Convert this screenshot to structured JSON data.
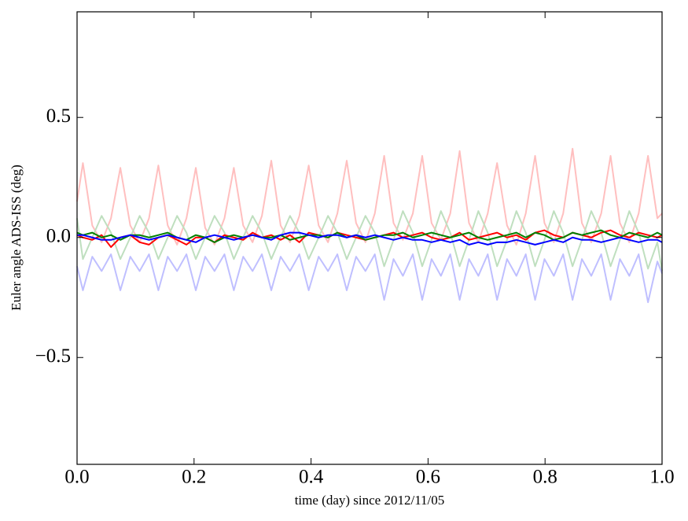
{
  "chart_data": {
    "type": "line",
    "xlabel": "time (day) since 2012/11/05",
    "ylabel": "Euler angle ADS-ISS (deg)",
    "xlim": [
      0,
      1
    ],
    "ylim": [
      -0.945,
      0.94
    ],
    "xticks": [
      {
        "value": 0,
        "label": "0.0"
      },
      0.2,
      0.4,
      0.6,
      0.8,
      {
        "value": 1,
        "label": "1.0"
      }
    ],
    "yticks": [
      {
        "value": -0.5,
        "label": "−0.5"
      },
      {
        "value": 0,
        "label": "0.0"
      },
      0.5
    ],
    "grid": false,
    "x": [
      0,
      0.01,
      0.026,
      0.042,
      0.058,
      0.074,
      0.091,
      0.107,
      0.123,
      0.139,
      0.155,
      0.171,
      0.187,
      0.203,
      0.219,
      0.235,
      0.252,
      0.268,
      0.284,
      0.3,
      0.316,
      0.332,
      0.348,
      0.364,
      0.38,
      0.396,
      0.413,
      0.429,
      0.445,
      0.461,
      0.477,
      0.493,
      0.509,
      0.525,
      0.541,
      0.557,
      0.574,
      0.59,
      0.606,
      0.622,
      0.638,
      0.654,
      0.67,
      0.686,
      0.702,
      0.718,
      0.735,
      0.751,
      0.767,
      0.783,
      0.799,
      0.815,
      0.831,
      0.847,
      0.863,
      0.879,
      0.896,
      0.912,
      0.928,
      0.944,
      0.96,
      0.976,
      0.992,
      1
    ],
    "series": [
      {
        "color": "#ffbfbf",
        "values": [
          0.15,
          0.31,
          0.05,
          -0.02,
          0.08,
          0.29,
          0.05,
          -0.02,
          0.08,
          0.3,
          0.05,
          -0.03,
          0.08,
          0.29,
          0.04,
          -0.03,
          0.08,
          0.29,
          0.05,
          -0.02,
          0.09,
          0.32,
          0.05,
          -0.02,
          0.09,
          0.3,
          0.05,
          -0.02,
          0.1,
          0.32,
          0.06,
          -0.02,
          0.1,
          0.34,
          0.06,
          -0.01,
          0.1,
          0.34,
          0.06,
          -0.01,
          0.1,
          0.36,
          0.06,
          -0.02,
          0.1,
          0.31,
          0.05,
          -0.03,
          0.1,
          0.34,
          0.06,
          -0.02,
          0.1,
          0.37,
          0.06,
          -0.02,
          0.1,
          0.34,
          0.06,
          -0.02,
          0.1,
          0.34,
          0.08,
          0.1
        ]
      },
      {
        "color": "#bfdfbf",
        "values": [
          0.08,
          -0.09,
          0.0,
          0.09,
          0.02,
          -0.09,
          0.0,
          0.09,
          0.02,
          -0.09,
          0.0,
          0.09,
          0.02,
          -0.09,
          0.0,
          0.09,
          0.02,
          -0.09,
          0.0,
          0.09,
          0.02,
          -0.09,
          0.0,
          0.09,
          0.02,
          -0.09,
          0.0,
          0.09,
          0.02,
          -0.09,
          0.0,
          0.09,
          0.02,
          -0.12,
          -0.01,
          0.11,
          0.02,
          -0.12,
          -0.01,
          0.11,
          0.02,
          -0.12,
          -0.01,
          0.11,
          0.02,
          -0.12,
          -0.01,
          0.11,
          0.02,
          -0.12,
          -0.01,
          0.11,
          0.02,
          -0.12,
          -0.01,
          0.11,
          0.02,
          -0.12,
          -0.01,
          0.11,
          0.02,
          -0.13,
          -0.02,
          -0.14
        ]
      },
      {
        "color": "#bfbfff",
        "values": [
          -0.12,
          -0.22,
          -0.08,
          -0.14,
          -0.07,
          -0.22,
          -0.08,
          -0.14,
          -0.07,
          -0.22,
          -0.08,
          -0.14,
          -0.07,
          -0.22,
          -0.08,
          -0.14,
          -0.07,
          -0.22,
          -0.08,
          -0.14,
          -0.07,
          -0.22,
          -0.08,
          -0.14,
          -0.07,
          -0.22,
          -0.08,
          -0.14,
          -0.07,
          -0.22,
          -0.08,
          -0.14,
          -0.07,
          -0.26,
          -0.09,
          -0.16,
          -0.07,
          -0.26,
          -0.09,
          -0.16,
          -0.07,
          -0.26,
          -0.09,
          -0.16,
          -0.07,
          -0.26,
          -0.09,
          -0.16,
          -0.07,
          -0.26,
          -0.09,
          -0.16,
          -0.07,
          -0.26,
          -0.09,
          -0.16,
          -0.07,
          -0.26,
          -0.09,
          -0.16,
          -0.07,
          -0.27,
          -0.1,
          -0.15
        ]
      },
      {
        "color": "#ff0000",
        "values": [
          0.01,
          0.0,
          -0.01,
          0.01,
          -0.04,
          0.0,
          0.01,
          -0.02,
          -0.03,
          0.0,
          0.01,
          -0.01,
          -0.03,
          0.0,
          0.0,
          -0.02,
          0.01,
          0.0,
          -0.01,
          0.02,
          0.0,
          0.01,
          -0.01,
          0.01,
          -0.02,
          0.02,
          0.01,
          0.0,
          0.02,
          0.01,
          0.0,
          -0.01,
          0.0,
          0.01,
          0.02,
          0.0,
          0.01,
          0.02,
          0.0,
          -0.01,
          0.0,
          0.02,
          -0.01,
          0.0,
          0.01,
          0.02,
          0.0,
          0.01,
          -0.01,
          0.02,
          0.03,
          0.01,
          0.0,
          0.02,
          0.01,
          0.0,
          0.02,
          0.03,
          0.01,
          0.0,
          0.02,
          0.01,
          0.0,
          0.01
        ]
      },
      {
        "color": "#008000",
        "values": [
          0.02,
          0.01,
          0.02,
          0.0,
          0.01,
          -0.01,
          0.01,
          0.01,
          0.0,
          0.01,
          0.02,
          0.0,
          -0.01,
          0.01,
          0.0,
          -0.02,
          0.0,
          0.01,
          0.0,
          0.01,
          0.0,
          0.0,
          0.01,
          -0.01,
          0.0,
          0.01,
          0.01,
          0.0,
          0.02,
          0.0,
          0.01,
          -0.01,
          0.0,
          0.01,
          0.01,
          0.02,
          0.0,
          0.01,
          0.02,
          0.01,
          0.0,
          0.01,
          0.02,
          0.0,
          -0.01,
          0.0,
          0.01,
          0.02,
          0.0,
          0.02,
          0.01,
          -0.01,
          0.0,
          0.02,
          0.01,
          0.02,
          0.03,
          0.01,
          0.0,
          0.02,
          0.01,
          0.0,
          0.02,
          0.01
        ]
      },
      {
        "color": "#0000ff",
        "values": [
          0.01,
          0.01,
          0.0,
          -0.01,
          -0.01,
          0.0,
          0.01,
          0.0,
          -0.01,
          0.0,
          0.01,
          0.0,
          -0.01,
          -0.02,
          0.0,
          0.01,
          0.0,
          -0.01,
          0.0,
          0.01,
          0.0,
          -0.01,
          0.01,
          0.02,
          0.02,
          0.01,
          0.0,
          0.01,
          0.01,
          0.0,
          0.01,
          0.0,
          0.01,
          0.0,
          -0.01,
          0.0,
          -0.01,
          -0.01,
          -0.02,
          -0.01,
          -0.02,
          -0.01,
          -0.03,
          -0.02,
          -0.03,
          -0.02,
          -0.02,
          -0.01,
          -0.02,
          -0.03,
          -0.02,
          -0.01,
          -0.02,
          0.0,
          -0.01,
          -0.01,
          -0.02,
          -0.01,
          0.0,
          -0.01,
          -0.02,
          -0.01,
          -0.01,
          -0.02
        ]
      }
    ]
  }
}
